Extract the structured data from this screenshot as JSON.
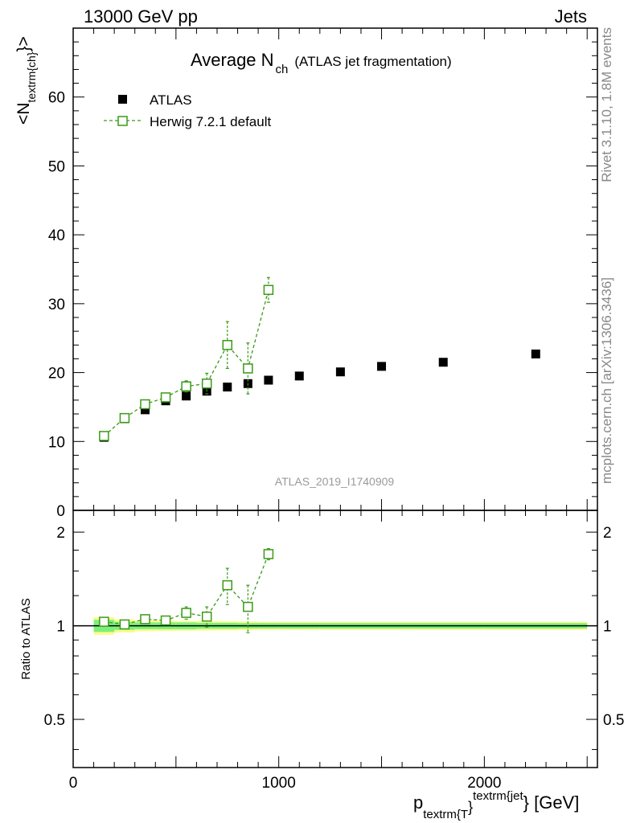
{
  "header": {
    "left": "13000 GeV pp",
    "right": "Jets"
  },
  "side": {
    "rivet": "Rivet 3.1.10,  1.8M events",
    "mcplots": "mcplots.cern.ch [arXiv:1306.3436]"
  },
  "colors": {
    "data": "#000000",
    "mc": "#3a9a16",
    "band_inner": "#7cf07c",
    "band_outer": "#fbfb8a"
  },
  "chart_data": {
    "type": "scatter",
    "title_main": "Average N",
    "title_sub": "ch",
    "title_suffix": "(ATLAS jet fragmentation)",
    "ylabel_main": "<N",
    "ylabel_sub": "textrm{ch}",
    "ylabel_suffix": "}>",
    "xlabel_main": "p",
    "xlabel_sub": "textrm{T",
    "xlabel_mid": "}",
    "xlabel_sup": "textrm{jet",
    "xlabel_suffix": "} [GeV]",
    "ratio_ylabel": "Ratio to ATLAS",
    "analysis_label": "ATLAS_2019_I1740909",
    "xlim": [
      0,
      2550
    ],
    "ylim": [
      0,
      70
    ],
    "ratio_ylim": [
      0.35,
      2.35
    ],
    "x_ticks": [
      {
        "value": 0,
        "label": "0"
      },
      {
        "value": 1000,
        "label": "1000"
      },
      {
        "value": 2000,
        "label": "2000"
      }
    ],
    "y_ticks": [
      {
        "value": 0,
        "label": "0"
      },
      {
        "value": 10,
        "label": "10"
      },
      {
        "value": 20,
        "label": "20"
      },
      {
        "value": 30,
        "label": "30"
      },
      {
        "value": 40,
        "label": "40"
      },
      {
        "value": 50,
        "label": "50"
      },
      {
        "value": 60,
        "label": "60"
      }
    ],
    "ratio_ticks": [
      {
        "value": 0.5,
        "label": "0.5"
      },
      {
        "value": 1,
        "label": "1"
      },
      {
        "value": 2,
        "label": "2"
      }
    ],
    "legend": {
      "position": "top-left",
      "entries": [
        "ATLAS",
        "Herwig 7.2.1 default"
      ]
    },
    "bin_edges": [
      100,
      200,
      300,
      400,
      500,
      600,
      700,
      800,
      900,
      1000,
      1200,
      1400,
      1600,
      2000,
      2500
    ],
    "series": [
      {
        "name": "ATLAS",
        "style": "filled-square",
        "x": [
          150,
          250,
          350,
          450,
          550,
          650,
          750,
          850,
          950,
          1100,
          1300,
          1500,
          1800,
          2250
        ],
        "y": [
          10.6,
          13.3,
          14.6,
          15.9,
          16.6,
          17.3,
          17.9,
          18.4,
          18.9,
          19.5,
          20.1,
          20.9,
          21.5,
          22.7
        ],
        "band_inner": [
          0.045,
          0.03,
          0.025,
          0.025,
          0.025,
          0.022,
          0.022,
          0.02,
          0.02,
          0.02,
          0.02,
          0.02,
          0.02,
          0.02
        ],
        "band_outer": [
          0.065,
          0.048,
          0.04,
          0.038,
          0.036,
          0.035,
          0.034,
          0.032,
          0.03,
          0.03,
          0.03,
          0.03,
          0.03,
          0.03
        ]
      },
      {
        "name": "Herwig 7.2.1 default",
        "style": "open-square-dashed",
        "x": [
          150,
          250,
          350,
          450,
          550,
          650,
          750,
          850,
          950
        ],
        "y": [
          10.8,
          13.4,
          15.4,
          16.4,
          18.0,
          18.4,
          24.0,
          20.6,
          32.0
        ],
        "err": [
          0.3,
          0.3,
          0.3,
          0.4,
          0.8,
          1.5,
          3.4,
          3.7,
          1.8
        ]
      }
    ],
    "ratio_series": [
      {
        "name": "Herwig 7.2.1 default",
        "x": [
          150,
          250,
          350,
          450,
          550,
          650,
          750,
          850,
          950
        ],
        "y": [
          1.03,
          1.01,
          1.05,
          1.04,
          1.1,
          1.07,
          1.35,
          1.15,
          1.7
        ],
        "err": [
          0.03,
          0.02,
          0.02,
          0.03,
          0.05,
          0.08,
          0.18,
          0.2,
          0.07
        ]
      }
    ]
  }
}
